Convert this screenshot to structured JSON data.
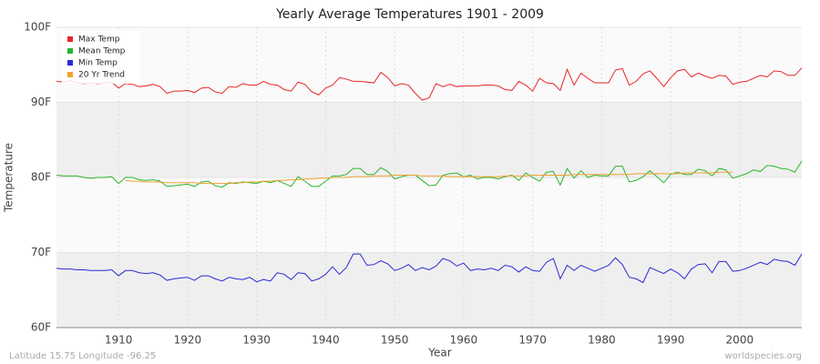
{
  "chart_data": {
    "type": "line",
    "title": "Yearly Average Temperatures 1901 - 2009",
    "xlabel": "Year",
    "ylabel": "Temperature",
    "footer_left": "Latitude 15.75 Longitude -96.25",
    "footer_right": "worldspecies.org",
    "xlim": [
      1901,
      2009
    ],
    "xticks": [
      1910,
      1920,
      1930,
      1940,
      1950,
      1960,
      1970,
      1980,
      1990,
      2000
    ],
    "ylim": [
      60,
      100
    ],
    "yticks": [
      {
        "value": 60,
        "label": "60F"
      },
      {
        "value": 70,
        "label": "70F"
      },
      {
        "value": 80,
        "label": "80F"
      },
      {
        "value": 90,
        "label": "90F"
      },
      {
        "value": 100,
        "label": "100F"
      }
    ],
    "grid": true,
    "legend": "upper left",
    "x": [
      1901,
      1902,
      1903,
      1904,
      1905,
      1906,
      1907,
      1908,
      1909,
      1910,
      1911,
      1912,
      1913,
      1914,
      1915,
      1916,
      1917,
      1918,
      1919,
      1920,
      1921,
      1922,
      1923,
      1924,
      1925,
      1926,
      1927,
      1928,
      1929,
      1930,
      1931,
      1932,
      1933,
      1934,
      1935,
      1936,
      1937,
      1938,
      1939,
      1940,
      1941,
      1942,
      1943,
      1944,
      1945,
      1946,
      1947,
      1948,
      1949,
      1950,
      1951,
      1952,
      1953,
      1954,
      1955,
      1956,
      1957,
      1958,
      1959,
      1960,
      1961,
      1962,
      1963,
      1964,
      1965,
      1966,
      1967,
      1968,
      1969,
      1970,
      1971,
      1972,
      1973,
      1974,
      1975,
      1976,
      1977,
      1978,
      1979,
      1980,
      1981,
      1982,
      1983,
      1984,
      1985,
      1986,
      1987,
      1988,
      1989,
      1990,
      1991,
      1992,
      1993,
      1994,
      1995,
      1996,
      1997,
      1998,
      1999,
      2000,
      2001,
      2002,
      2003,
      2004,
      2005,
      2006,
      2007,
      2008,
      2009
    ],
    "series": [
      {
        "name": "Max Temp",
        "color": "#e8262a",
        "values": [
          92.8,
          92.7,
          92.9,
          92.6,
          92.5,
          92.6,
          92.5,
          92.6,
          92.7,
          91.9,
          92.5,
          92.4,
          92.1,
          92.2,
          92.4,
          92.1,
          91.2,
          91.5,
          91.5,
          91.6,
          91.3,
          91.9,
          92.0,
          91.4,
          91.2,
          92.1,
          92.0,
          92.5,
          92.3,
          92.3,
          92.8,
          92.4,
          92.3,
          91.7,
          91.5,
          92.7,
          92.4,
          91.4,
          91.0,
          91.9,
          92.3,
          93.3,
          93.1,
          92.8,
          92.8,
          92.7,
          92.6,
          94.0,
          93.3,
          92.2,
          92.5,
          92.3,
          91.2,
          90.3,
          90.6,
          92.5,
          92.1,
          92.4,
          92.1,
          92.2,
          92.2,
          92.2,
          92.3,
          92.3,
          92.2,
          91.7,
          91.6,
          92.8,
          92.3,
          91.5,
          93.2,
          92.6,
          92.5,
          91.6,
          94.4,
          92.3,
          93.9,
          93.2,
          92.6,
          92.6,
          92.6,
          94.3,
          94.5,
          92.3,
          92.8,
          93.8,
          94.2,
          93.2,
          92.1,
          93.3,
          94.2,
          94.4,
          93.4,
          93.9,
          93.5,
          93.2,
          93.6,
          93.5,
          92.4,
          92.7,
          92.8,
          93.2,
          93.6,
          93.4,
          94.2,
          94.1,
          93.6,
          93.6,
          94.6
        ]
      },
      {
        "name": "Mean Temp",
        "color": "#2bb52b",
        "values": [
          80.3,
          80.2,
          80.2,
          80.2,
          80.0,
          79.9,
          80.0,
          80.0,
          80.1,
          79.2,
          80.0,
          80.0,
          79.7,
          79.6,
          79.7,
          79.5,
          78.8,
          78.9,
          79.0,
          79.1,
          78.8,
          79.4,
          79.5,
          78.9,
          78.7,
          79.3,
          79.2,
          79.4,
          79.3,
          79.2,
          79.5,
          79.3,
          79.6,
          79.2,
          78.8,
          80.1,
          79.5,
          78.8,
          78.8,
          79.5,
          80.2,
          80.2,
          80.4,
          81.2,
          81.2,
          80.4,
          80.4,
          81.3,
          80.8,
          79.8,
          80.1,
          80.3,
          80.3,
          79.6,
          78.9,
          79.0,
          80.3,
          80.5,
          80.6,
          80.1,
          80.3,
          79.8,
          80.0,
          80.0,
          79.8,
          80.1,
          80.3,
          79.6,
          80.6,
          80.0,
          79.5,
          80.7,
          80.8,
          79.0,
          81.2,
          79.9,
          80.9,
          80.0,
          80.3,
          80.2,
          80.2,
          81.5,
          81.5,
          79.4,
          79.6,
          80.1,
          80.9,
          80.1,
          79.3,
          80.4,
          80.7,
          80.4,
          80.4,
          81.1,
          80.9,
          80.2,
          81.2,
          81.0,
          79.9,
          80.2,
          80.5,
          81.0,
          80.8,
          81.6,
          81.5,
          81.2,
          81.1,
          80.7,
          82.2
        ]
      },
      {
        "name": "Min Temp",
        "color": "#2a2ad4",
        "values": [
          67.9,
          67.8,
          67.8,
          67.7,
          67.7,
          67.6,
          67.6,
          67.6,
          67.7,
          66.9,
          67.6,
          67.6,
          67.3,
          67.2,
          67.3,
          67.0,
          66.3,
          66.5,
          66.6,
          66.7,
          66.3,
          66.9,
          66.9,
          66.5,
          66.2,
          66.7,
          66.5,
          66.4,
          66.7,
          66.1,
          66.4,
          66.2,
          67.3,
          67.1,
          66.4,
          67.3,
          67.2,
          66.2,
          66.5,
          67.1,
          68.1,
          67.1,
          68.0,
          69.8,
          69.8,
          68.3,
          68.4,
          68.9,
          68.5,
          67.6,
          67.9,
          68.4,
          67.6,
          68.0,
          67.7,
          68.2,
          69.2,
          68.9,
          68.2,
          68.6,
          67.6,
          67.8,
          67.7,
          67.9,
          67.6,
          68.3,
          68.1,
          67.4,
          68.1,
          67.6,
          67.5,
          68.7,
          69.2,
          66.5,
          68.3,
          67.6,
          68.3,
          67.9,
          67.5,
          67.9,
          68.3,
          69.3,
          68.4,
          66.7,
          66.5,
          66.0,
          68.0,
          67.6,
          67.2,
          67.8,
          67.3,
          66.5,
          67.8,
          68.4,
          68.5,
          67.3,
          68.8,
          68.8,
          67.5,
          67.6,
          67.9,
          68.3,
          68.7,
          68.4,
          69.1,
          68.9,
          68.8,
          68.3,
          69.8
        ]
      },
      {
        "name": "20 Yr Trend",
        "color": "#f0a030",
        "values": [
          null,
          null,
          null,
          null,
          null,
          null,
          null,
          null,
          null,
          null,
          79.6,
          79.5,
          79.5,
          79.4,
          79.4,
          79.4,
          79.3,
          79.3,
          79.3,
          79.3,
          79.3,
          79.2,
          79.2,
          79.2,
          79.2,
          79.2,
          79.3,
          79.3,
          79.4,
          79.4,
          79.5,
          79.5,
          79.6,
          79.6,
          79.7,
          79.7,
          79.8,
          79.8,
          79.9,
          79.9,
          80.0,
          80.0,
          80.0,
          80.1,
          80.1,
          80.1,
          80.2,
          80.2,
          80.2,
          80.3,
          80.3,
          80.3,
          80.3,
          80.2,
          80.2,
          80.2,
          80.2,
          80.1,
          80.1,
          80.1,
          80.1,
          80.1,
          80.1,
          80.1,
          80.1,
          80.2,
          80.2,
          80.2,
          80.2,
          80.3,
          80.3,
          80.3,
          80.3,
          80.3,
          80.3,
          80.4,
          80.4,
          80.4,
          80.4,
          80.4,
          80.4,
          80.4,
          80.4,
          80.4,
          80.5,
          80.5,
          80.5,
          80.5,
          80.5,
          80.5,
          80.5,
          80.6,
          80.6,
          80.6,
          80.6,
          80.6,
          80.7,
          80.7,
          80.7,
          null,
          null,
          null,
          null,
          null,
          null,
          null,
          null,
          null,
          null
        ]
      }
    ]
  }
}
